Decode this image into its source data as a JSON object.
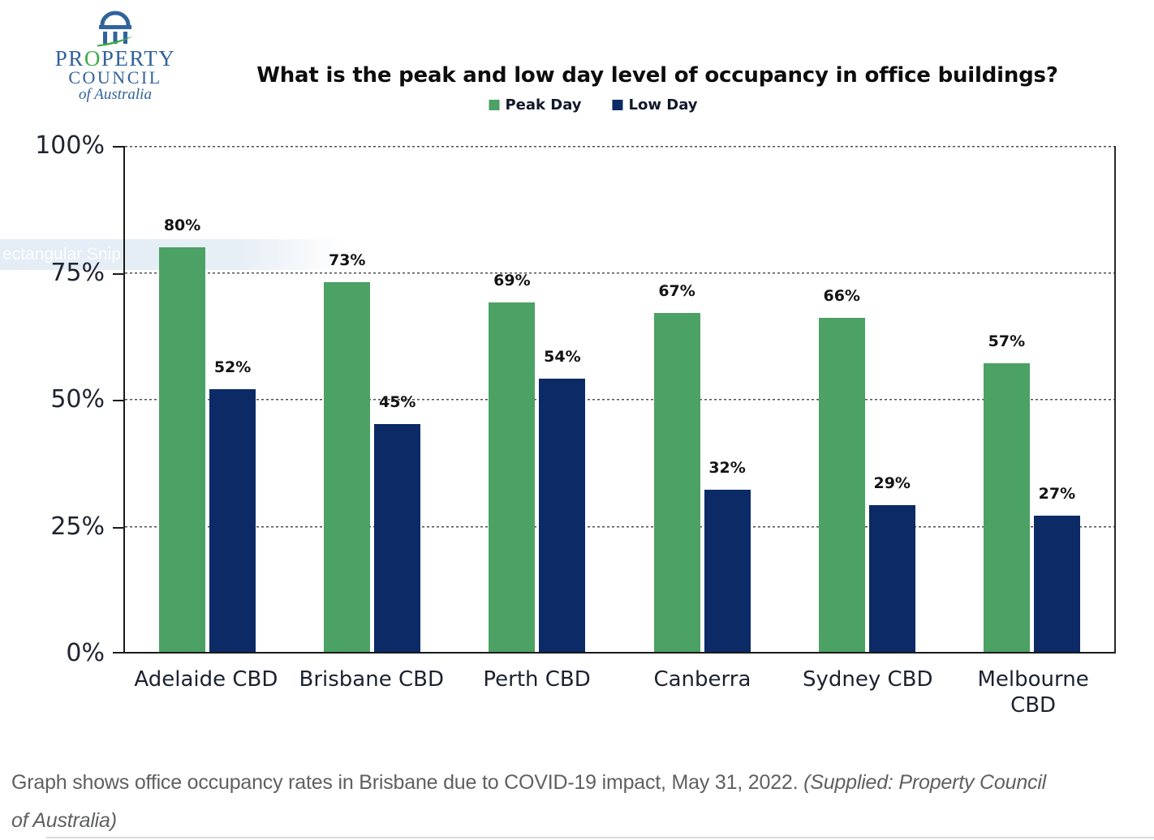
{
  "logo": {
    "org_name": "Property Council of Australia",
    "line1_pre": "PR",
    "line1_o": "O",
    "line1_post": "PERTY",
    "line2": "COUNCIL",
    "line3": "of Australia",
    "blue": "#31639c",
    "green": "#3faa4a"
  },
  "title": "What is the peak and low day level of occupancy in office buildings?",
  "legend": [
    {
      "label": "Peak Day",
      "color": "#4ca164"
    },
    {
      "label": "Low Day",
      "color": "#0b2a66"
    }
  ],
  "chart_data": {
    "type": "bar",
    "title": "What is the peak and low day level of occupancy in office buildings?",
    "categories": [
      "Adelaide CBD",
      "Brisbane CBD",
      "Perth CBD",
      "Canberra",
      "Sydney CBD",
      "Melbourne CBD"
    ],
    "categories_display": [
      [
        "Adelaide CBD"
      ],
      [
        "Brisbane CBD"
      ],
      [
        "Perth CBD"
      ],
      [
        "Canberra"
      ],
      [
        "Sydney CBD"
      ],
      [
        "Melbourne",
        "CBD"
      ]
    ],
    "series": [
      {
        "name": "Peak Day",
        "color": "#4ca164",
        "values": [
          80,
          73,
          69,
          67,
          66,
          57
        ]
      },
      {
        "name": "Low Day",
        "color": "#0b2a66",
        "values": [
          52,
          45,
          54,
          32,
          29,
          27
        ]
      }
    ],
    "value_labels": true,
    "value_suffix": "%",
    "xlabel": "",
    "ylabel": "",
    "ylim": [
      0,
      100
    ],
    "yticks": [
      0,
      25,
      50,
      75,
      100
    ],
    "ytick_labels": [
      "0%",
      "25%",
      "50%",
      "75%",
      "100%"
    ],
    "grid": "horizontal-dashed",
    "legend_position": "top-center"
  },
  "artifact": {
    "snip_tooltip": "ectangular Snip"
  },
  "caption": {
    "regular": "Graph shows office occupancy rates in Brisbane due to COVID-19 impact, May 31, 2022. ",
    "italic": "(Supplied: Property Council of Australia)"
  }
}
